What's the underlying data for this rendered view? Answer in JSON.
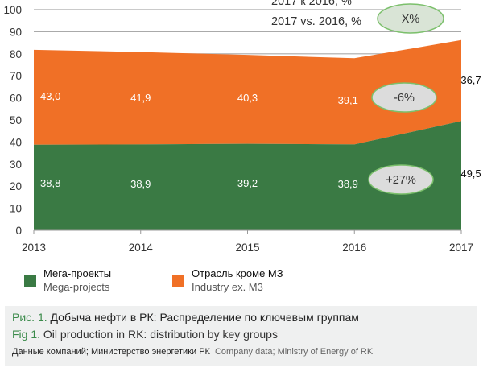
{
  "colors": {
    "mega": "#3a7a44",
    "industry": "#f07026",
    "grid": "#aaaaaa",
    "ellipse_fill": "#dcdcdc",
    "ellipse_x_fill": "#d9e4d6",
    "ellipse_stroke": "#7cc06c",
    "caption_bg": "#eff0f0",
    "fig_label": "#3a8a4a"
  },
  "chart_data": {
    "type": "area",
    "stacked": true,
    "categories": [
      "2013",
      "2014",
      "2015",
      "2016",
      "2017"
    ],
    "series": [
      {
        "name": "Мега-проекты / Mega-projects",
        "key": "mega",
        "values": [
          38.8,
          38.9,
          39.2,
          38.9,
          49.5
        ],
        "labels": [
          "38,8",
          "38,9",
          "39,2",
          "38,9",
          "49,5"
        ]
      },
      {
        "name": "Отрасль кроме МЗ / Industry ex. M3",
        "key": "industry",
        "values": [
          43.0,
          41.9,
          40.3,
          39.1,
          36.7
        ],
        "labels": [
          "43,0",
          "41,9",
          "40,3",
          "39,1",
          "36,7"
        ]
      }
    ],
    "yticks": [
      "0",
      "10",
      "20",
      "30",
      "40",
      "50",
      "60",
      "70",
      "80",
      "90",
      "100"
    ],
    "ylim": [
      0,
      100
    ],
    "grid": true,
    "xlabel": "",
    "ylabel": "",
    "annotations": {
      "legend_ru": "2017 к 2016, %",
      "legend_en": "2017 vs. 2016, %",
      "legend_marker": "X%",
      "industry_change": "-6%",
      "mega_change": "+27%"
    },
    "legend": "bottom-left"
  },
  "legend": {
    "items": [
      {
        "ru": "Мега-проекты",
        "en": "Mega-projects"
      },
      {
        "ru": "Отрасль кроме МЗ",
        "en": "Industry ex. M3"
      }
    ]
  },
  "caption": {
    "ru_prefix": "Рис. 1.",
    "ru_text": " Добыча нефти в РК: Распределение по ключевым группам",
    "en_prefix": "Fig 1.",
    "en_text": " Oil production in RK: distribution by key groups",
    "source_ru": "Данные компаний; Министерство энергетики РК",
    "source_en": "Company data; Ministry of Energy of RK"
  }
}
